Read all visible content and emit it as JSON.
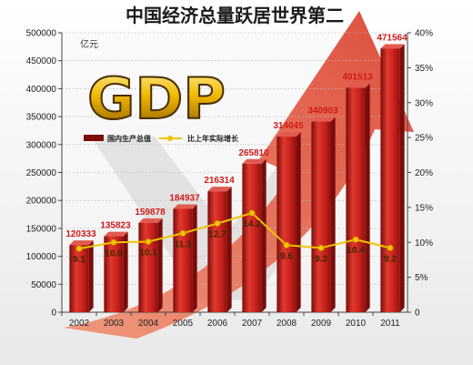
{
  "chart_data": {
    "type": "bar",
    "title": "中国经济总量跃居世界第二",
    "logo_text": "GDP",
    "ylabel": "亿元",
    "categories": [
      "2002",
      "2003",
      "2004",
      "2005",
      "2006",
      "2007",
      "2008",
      "2009",
      "2010",
      "2011"
    ],
    "series": [
      {
        "name": "国内生产总值",
        "type": "bar",
        "axis": "left",
        "values": [
          120333,
          135823,
          159878,
          184937,
          216314,
          265810,
          314045,
          340903,
          401513,
          471564
        ],
        "labels": [
          "120333",
          "135823",
          "159878",
          "184937",
          "216314",
          "265810",
          "314045",
          "340903",
          "401513",
          "471564"
        ]
      },
      {
        "name": "比上年实际增长",
        "type": "line",
        "axis": "right",
        "values": [
          9.1,
          10.0,
          10.1,
          11.3,
          12.7,
          14.2,
          9.6,
          9.2,
          10.4,
          9.2
        ],
        "labels": [
          "9.1",
          "10.0",
          "10.1",
          "11.3",
          "12.7",
          "14.2",
          "9.6",
          "9.2",
          "10.4",
          "9.2"
        ]
      }
    ],
    "y_left": {
      "lim": [
        0,
        500000
      ],
      "ticks": [
        "0",
        "50000",
        "100000",
        "150000",
        "200000",
        "250000",
        "300000",
        "350000",
        "400000",
        "450000",
        "500000"
      ]
    },
    "y_right": {
      "lim": [
        0,
        40
      ],
      "ticks": [
        "0",
        "5%",
        "10%",
        "15%",
        "20%",
        "25%",
        "30%",
        "35%",
        "40%"
      ]
    },
    "legend_position": "upper-left",
    "colors": {
      "bar": "#c8201c",
      "bar_dark": "#7a0c0a",
      "line": "#f2c200",
      "arrow": "#e8553a"
    }
  }
}
